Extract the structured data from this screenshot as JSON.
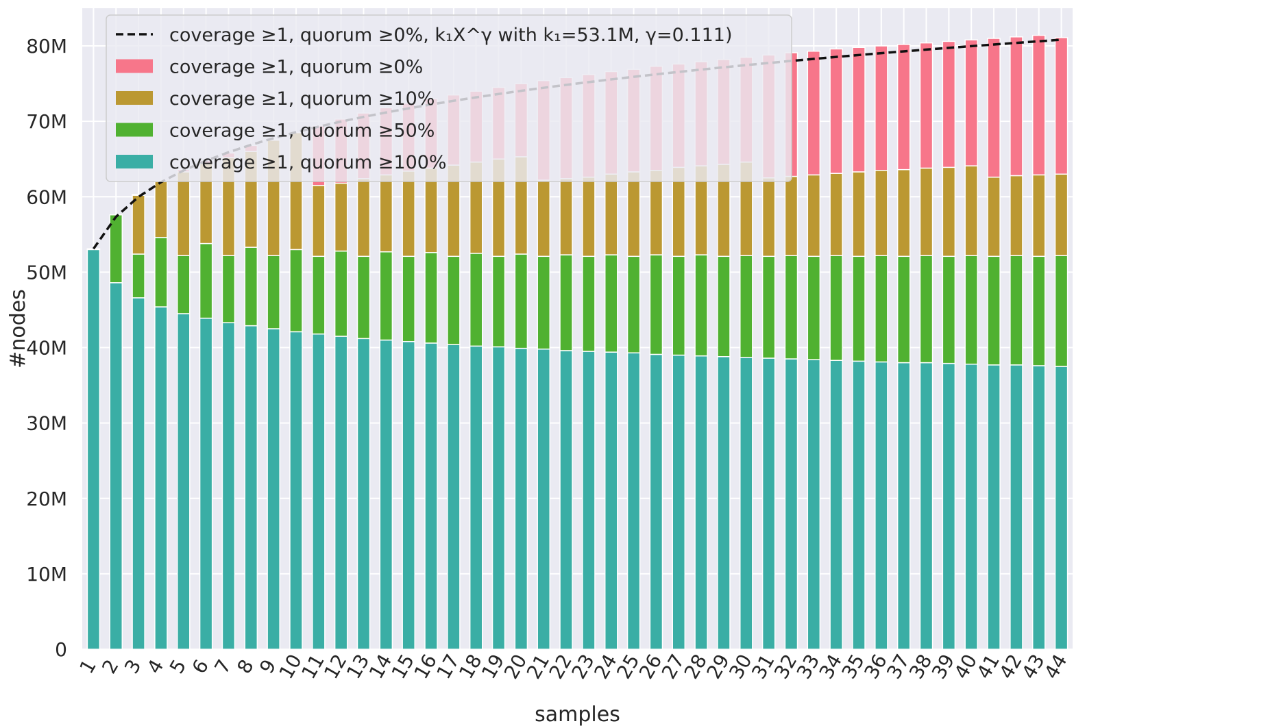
{
  "chart_data": {
    "type": "bar",
    "stacked": true,
    "xlabel": "samples",
    "ylabel": "#nodes",
    "ylim": [
      0,
      85000000
    ],
    "yticks": [
      0,
      10000000,
      20000000,
      30000000,
      40000000,
      50000000,
      60000000,
      70000000,
      80000000
    ],
    "ytick_labels": [
      "0",
      "10M",
      "20M",
      "30M",
      "40M",
      "50M",
      "60M",
      "70M",
      "80M"
    ],
    "grid": true,
    "legend_position": "top-left",
    "categories": [
      "1",
      "2",
      "3",
      "4",
      "5",
      "6",
      "7",
      "8",
      "9",
      "10",
      "11",
      "12",
      "13",
      "14",
      "15",
      "16",
      "17",
      "18",
      "19",
      "20",
      "21",
      "22",
      "23",
      "24",
      "25",
      "26",
      "27",
      "28",
      "29",
      "30",
      "31",
      "32",
      "33",
      "34",
      "35",
      "36",
      "37",
      "38",
      "39",
      "40",
      "41",
      "42",
      "43",
      "44"
    ],
    "series": [
      {
        "name": "coverage ≥1, quorum ≥100%",
        "color": "#3aaea5",
        "cumulative_values": [
          53.0,
          48.6,
          46.6,
          45.4,
          44.5,
          43.9,
          43.3,
          42.9,
          42.5,
          42.1,
          41.8,
          41.5,
          41.2,
          41.0,
          40.8,
          40.6,
          40.4,
          40.2,
          40.1,
          39.9,
          39.8,
          39.6,
          39.5,
          39.4,
          39.3,
          39.1,
          39.0,
          38.9,
          38.8,
          38.7,
          38.6,
          38.5,
          38.4,
          38.3,
          38.2,
          38.1,
          38.0,
          38.0,
          37.9,
          37.8,
          37.7,
          37.7,
          37.6,
          37.5
        ]
      },
      {
        "name": "coverage ≥1, quorum ≥50%",
        "color": "#50b131",
        "cumulative_values": [
          53.0,
          57.6,
          52.4,
          54.6,
          52.2,
          53.8,
          52.2,
          53.3,
          52.2,
          53.0,
          52.1,
          52.8,
          52.1,
          52.7,
          52.1,
          52.6,
          52.1,
          52.5,
          52.1,
          52.4,
          52.1,
          52.3,
          52.1,
          52.3,
          52.1,
          52.3,
          52.1,
          52.3,
          52.1,
          52.2,
          52.1,
          52.2,
          52.1,
          52.2,
          52.1,
          52.2,
          52.1,
          52.2,
          52.1,
          52.2,
          52.1,
          52.2,
          52.1,
          52.2
        ]
      },
      {
        "name": "coverage ≥1, quorum ≥10%",
        "color": "#bb9832",
        "cumulative_values": [
          53.0,
          57.6,
          60.2,
          62.0,
          63.3,
          64.4,
          65.2,
          66.0,
          67.5,
          68.5,
          61.5,
          61.8,
          62.4,
          62.9,
          63.4,
          63.8,
          64.2,
          64.6,
          65.0,
          65.3,
          62.2,
          62.4,
          62.6,
          63.0,
          63.3,
          63.5,
          63.9,
          64.1,
          64.3,
          64.6,
          62.5,
          62.7,
          62.9,
          63.1,
          63.3,
          63.5,
          63.6,
          63.8,
          63.9,
          64.1,
          62.6,
          62.8,
          62.9,
          63.0
        ]
      },
      {
        "name": "coverage ≥1, quorum ≥0%",
        "color": "#f7768a",
        "cumulative_values": [
          53.1,
          57.6,
          60.3,
          62.1,
          63.6,
          64.8,
          65.8,
          66.8,
          67.6,
          68.4,
          69.4,
          70.3,
          71.1,
          71.8,
          72.4,
          73.0,
          73.5,
          74.0,
          74.5,
          75.0,
          75.4,
          75.8,
          76.2,
          76.6,
          76.9,
          77.3,
          77.6,
          77.9,
          78.2,
          78.5,
          78.8,
          79.1,
          79.3,
          79.6,
          79.8,
          80.0,
          80.2,
          80.4,
          80.6,
          80.8,
          81.0,
          81.2,
          81.4,
          81.1
        ]
      }
    ],
    "fit_line": {
      "label": "coverage ≥1, quorum ≥0%, k₁X^γ with k₁=53.1M, γ=0.111)",
      "style": "dashed",
      "color": "#111111",
      "k1": 53.1,
      "gamma": 0.111
    },
    "colors": {
      "plot_background": "#eaeaf2",
      "grid": "#ffffff",
      "text": "#262626"
    }
  }
}
